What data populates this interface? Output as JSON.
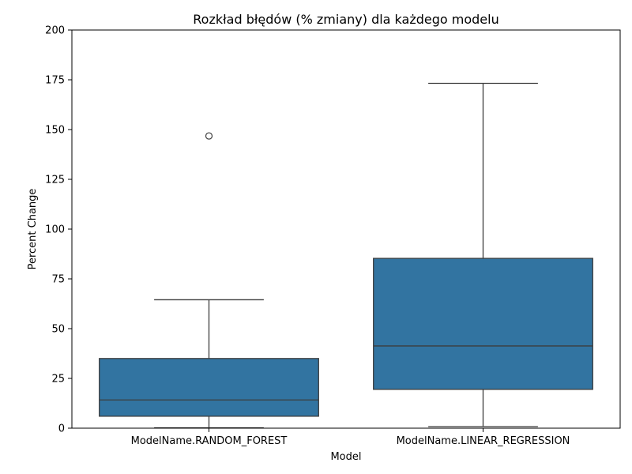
{
  "chart_data": {
    "type": "box",
    "title": "Rozkład błędów (% zmiany) dla każdego modelu",
    "xlabel": "Model",
    "ylabel": "Percent Change",
    "categories": [
      "ModelName.RANDOM_FOREST",
      "ModelName.LINEAR_REGRESSION"
    ],
    "ylim": [
      0,
      200
    ],
    "yticks": [
      0,
      25,
      50,
      75,
      100,
      125,
      150,
      175,
      200
    ],
    "grid": false,
    "boxes": [
      {
        "category": "ModelName.RANDOM_FOREST",
        "whisker_low": 0.2,
        "q1": 6,
        "median": 14.2,
        "q3": 35,
        "whisker_high": 64.5,
        "outliers": [
          146.8
        ]
      },
      {
        "category": "ModelName.LINEAR_REGRESSION",
        "whisker_low": 0.8,
        "q1": 19.5,
        "median": 41.3,
        "q3": 85.3,
        "whisker_high": 173.2,
        "outliers": []
      }
    ],
    "box_color": "#3274a1",
    "line_color": "#3d3d3d"
  }
}
